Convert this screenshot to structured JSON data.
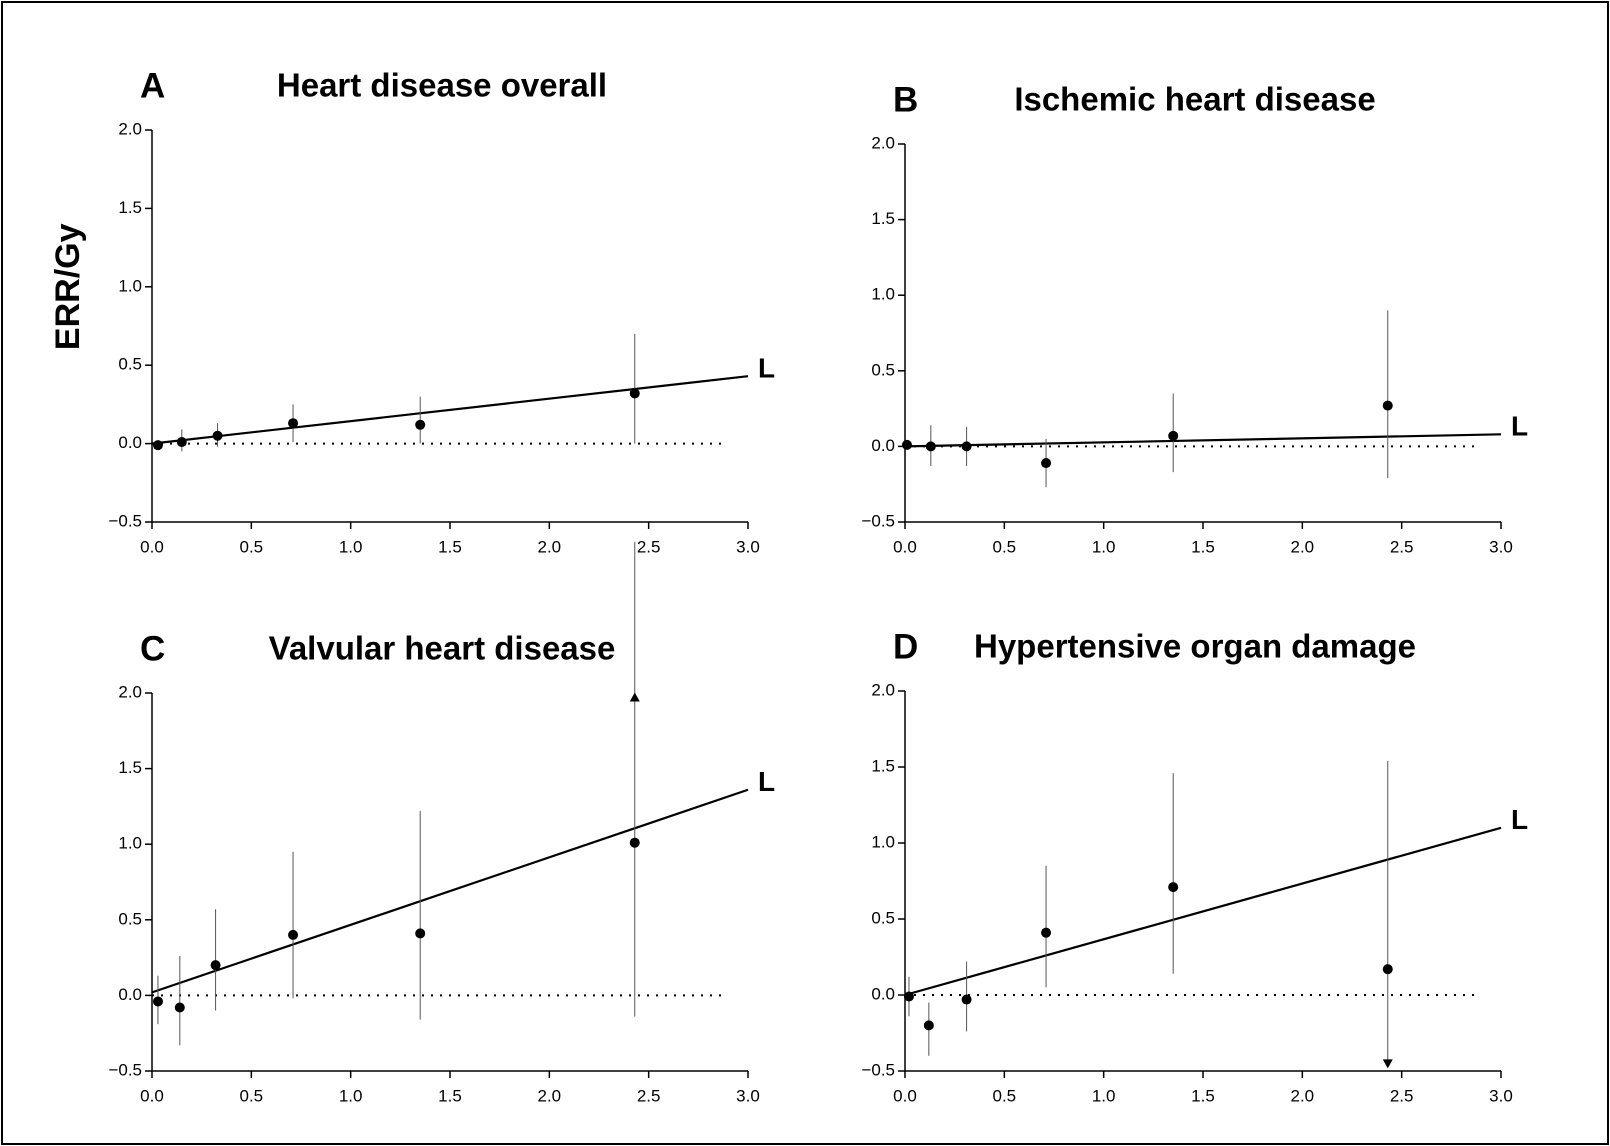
{
  "chart_data": [
    {
      "type": "scatter",
      "panel": "A",
      "title": "Heart disease overall",
      "ylabel": "ERR/Gy",
      "x": [
        0.03,
        0.15,
        0.33,
        0.71,
        1.35,
        2.43
      ],
      "values": [
        -0.01,
        0.01,
        0.05,
        0.13,
        0.12,
        0.32
      ],
      "error_low": [
        -0.04,
        -0.05,
        -0.02,
        0.01,
        0.0,
        0.0
      ],
      "error_high": [
        0.02,
        0.09,
        0.13,
        0.25,
        0.3,
        0.7
      ],
      "fit": {
        "label": "L",
        "x": [
          0,
          3
        ],
        "values": [
          0,
          0.43
        ]
      },
      "zero_line": "dotted",
      "color": "#000000",
      "xlim": [
        0,
        3
      ],
      "ylim": [
        -0.5,
        2.0
      ],
      "xticks": [
        {
          "value": 0,
          "label": "0.0"
        },
        {
          "value": 0.5,
          "label": "0.5"
        },
        {
          "value": 1,
          "label": "1.0"
        },
        {
          "value": 1.5,
          "label": "1.5"
        },
        {
          "value": 2,
          "label": "2.0"
        },
        {
          "value": 2.5,
          "label": "2.5"
        },
        {
          "value": 3,
          "label": "3.0"
        }
      ],
      "yticks": [
        {
          "value": -0.5,
          "label": "−0.5"
        },
        {
          "value": 0,
          "label": "0.0"
        },
        {
          "value": 0.5,
          "label": "0.5"
        },
        {
          "value": 1,
          "label": "1.0"
        },
        {
          "value": 1.5,
          "label": "1.5"
        },
        {
          "value": 2,
          "label": "2.0"
        }
      ]
    },
    {
      "type": "scatter",
      "panel": "B",
      "title": "Ischemic heart disease",
      "x": [
        0.01,
        0.13,
        0.31,
        0.71,
        1.35,
        2.43
      ],
      "values": [
        0.01,
        0.0,
        0.0,
        -0.11,
        0.07,
        0.27
      ],
      "error_low": [
        -0.02,
        -0.13,
        -0.13,
        -0.27,
        -0.17,
        -0.21
      ],
      "error_high": [
        0.03,
        0.14,
        0.13,
        0.05,
        0.35,
        0.9
      ],
      "fit": {
        "label": "L",
        "x": [
          0,
          3
        ],
        "values": [
          0,
          0.08
        ]
      },
      "zero_line": "dotted",
      "color": "#000000",
      "xlim": [
        0,
        3
      ],
      "ylim": [
        -0.5,
        2.0
      ],
      "xticks": [
        {
          "value": 0,
          "label": "0.0"
        },
        {
          "value": 0.5,
          "label": "0.5"
        },
        {
          "value": 1,
          "label": "1.0"
        },
        {
          "value": 1.5,
          "label": "1.5"
        },
        {
          "value": 2,
          "label": "2.0"
        },
        {
          "value": 2.5,
          "label": "2.5"
        },
        {
          "value": 3,
          "label": "3.0"
        }
      ],
      "yticks": [
        {
          "value": -0.5,
          "label": "−0.5"
        },
        {
          "value": 0,
          "label": "0.0"
        },
        {
          "value": 0.5,
          "label": "0.5"
        },
        {
          "value": 1,
          "label": "1.0"
        },
        {
          "value": 1.5,
          "label": "1.5"
        },
        {
          "value": 2,
          "label": "2.0"
        }
      ]
    },
    {
      "type": "scatter",
      "panel": "C",
      "title": "Valvular heart disease",
      "x": [
        0.03,
        0.14,
        0.32,
        0.71,
        1.35,
        2.43
      ],
      "values": [
        -0.04,
        -0.08,
        0.2,
        0.4,
        0.41,
        1.01
      ],
      "error_low": [
        -0.19,
        -0.33,
        -0.1,
        -0.02,
        -0.16,
        -0.14
      ],
      "error_high": [
        0.13,
        0.26,
        0.57,
        0.95,
        1.22,
        3.0
      ],
      "triangles": [
        {
          "x": 2.43,
          "y": 1.97,
          "dir": "up"
        }
      ],
      "fit": {
        "label": "L",
        "x": [
          0,
          3
        ],
        "values": [
          0.02,
          1.36
        ]
      },
      "zero_line": "dotted",
      "color": "#000000",
      "xlim": [
        0,
        3
      ],
      "ylim": [
        -0.5,
        2.0
      ],
      "xticks": [
        {
          "value": 0,
          "label": "0.0"
        },
        {
          "value": 0.5,
          "label": "0.5"
        },
        {
          "value": 1,
          "label": "1.0"
        },
        {
          "value": 1.5,
          "label": "1.5"
        },
        {
          "value": 2,
          "label": "2.0"
        },
        {
          "value": 2.5,
          "label": "2.5"
        },
        {
          "value": 3,
          "label": "3.0"
        }
      ],
      "yticks": [
        {
          "value": -0.5,
          "label": "−0.5"
        },
        {
          "value": 0,
          "label": "0.0"
        },
        {
          "value": 0.5,
          "label": "0.5"
        },
        {
          "value": 1,
          "label": "1.0"
        },
        {
          "value": 1.5,
          "label": "1.5"
        },
        {
          "value": 2,
          "label": "2.0"
        }
      ]
    },
    {
      "type": "scatter",
      "panel": "D",
      "title": "Hypertensive organ damage",
      "x": [
        0.02,
        0.12,
        0.31,
        0.71,
        1.35,
        2.43
      ],
      "values": [
        -0.01,
        -0.2,
        -0.03,
        0.41,
        0.71,
        0.17
      ],
      "error_low": [
        -0.14,
        -0.4,
        -0.24,
        0.05,
        0.14,
        -0.45
      ],
      "error_high": [
        0.12,
        -0.05,
        0.22,
        0.85,
        1.46,
        1.54
      ],
      "triangles": [
        {
          "x": 2.43,
          "y": -0.45,
          "dir": "down"
        }
      ],
      "fit": {
        "label": "L",
        "x": [
          0,
          3
        ],
        "values": [
          0,
          1.1
        ]
      },
      "zero_line": "dotted",
      "color": "#000000",
      "xlim": [
        0,
        3
      ],
      "ylim": [
        -0.5,
        2.0
      ],
      "xticks": [
        {
          "value": 0,
          "label": "0.0"
        },
        {
          "value": 0.5,
          "label": "0.5"
        },
        {
          "value": 1,
          "label": "1.0"
        },
        {
          "value": 1.5,
          "label": "1.5"
        },
        {
          "value": 2,
          "label": "2.0"
        },
        {
          "value": 2.5,
          "label": "2.5"
        },
        {
          "value": 3,
          "label": "3.0"
        }
      ],
      "yticks": [
        {
          "value": -0.5,
          "label": "−0.5"
        },
        {
          "value": 0,
          "label": "0.0"
        },
        {
          "value": 0.5,
          "label": "0.5"
        },
        {
          "value": 1,
          "label": "1.0"
        },
        {
          "value": 1.5,
          "label": "1.5"
        },
        {
          "value": 2,
          "label": "2.0"
        }
      ]
    }
  ]
}
